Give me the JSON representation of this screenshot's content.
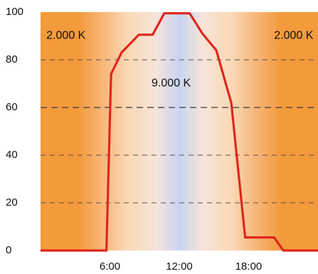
{
  "chart_data": {
    "type": "line",
    "title": "",
    "xlabel": "",
    "ylabel": "",
    "x_ticks": [
      {
        "x": 6,
        "label": "6:00"
      },
      {
        "x": 12,
        "label": "12:00"
      },
      {
        "x": 18,
        "label": "18:00"
      }
    ],
    "y_ticks": [
      0,
      20,
      40,
      60,
      80,
      100
    ],
    "xlim": [
      0,
      24
    ],
    "ylim": [
      0,
      100
    ],
    "grid": {
      "horizontal_dashed": true,
      "vertical": false
    },
    "background_gradient": {
      "meaning": "color temperature over the day",
      "stops": [
        {
          "x": 0,
          "color": "#f39a3b"
        },
        {
          "x": 3.3,
          "color": "#f39a3b"
        },
        {
          "x": 5.4,
          "color": "#f7b679"
        },
        {
          "x": 7.5,
          "color": "#fad8b4"
        },
        {
          "x": 10.0,
          "color": "#f6e4d9"
        },
        {
          "x": 12.0,
          "color": "#c8d4f2"
        },
        {
          "x": 14.0,
          "color": "#f6e4d9"
        },
        {
          "x": 16.6,
          "color": "#fad8b4"
        },
        {
          "x": 18.6,
          "color": "#f7b679"
        },
        {
          "x": 20.8,
          "color": "#f39a3b"
        },
        {
          "x": 24,
          "color": "#f39a3b"
        }
      ]
    },
    "annotations": [
      {
        "text": "2.000 K",
        "x": 2.2,
        "y": 90
      },
      {
        "text": "9.000 K",
        "x": 11.3,
        "y": 70
      },
      {
        "text": "2.000 K",
        "x": 21.9,
        "y": 90
      }
    ],
    "series": [
      {
        "color": "#e0261e",
        "points": [
          [
            0,
            0
          ],
          [
            5.7,
            0
          ],
          [
            6.1,
            74
          ],
          [
            7.0,
            83
          ],
          [
            8.0,
            88
          ],
          [
            8.5,
            90.5
          ],
          [
            9.7,
            90.5
          ],
          [
            10.7,
            99.5
          ],
          [
            12.9,
            99.5
          ],
          [
            14.0,
            91
          ],
          [
            15.2,
            84
          ],
          [
            16.5,
            62
          ],
          [
            17.7,
            5.5
          ],
          [
            20.2,
            5.5
          ],
          [
            21.0,
            0
          ],
          [
            24,
            0
          ]
        ]
      }
    ]
  }
}
